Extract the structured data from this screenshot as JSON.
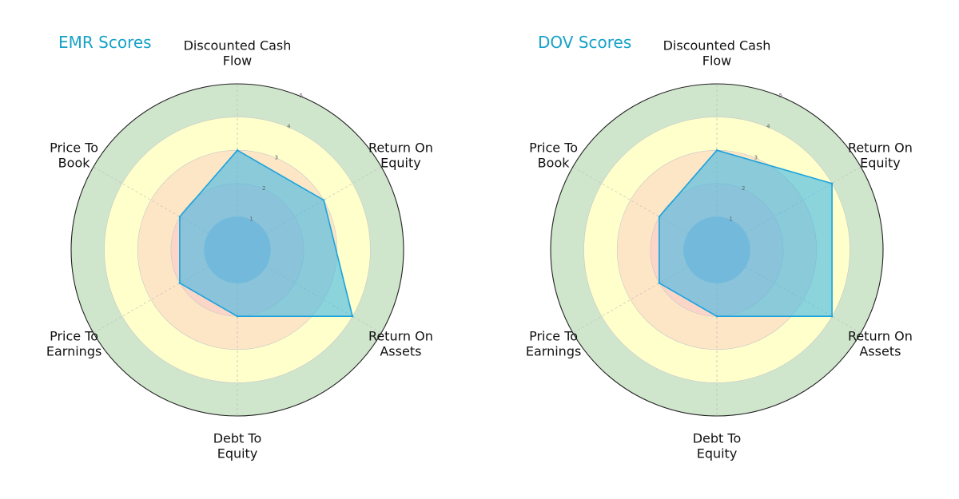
{
  "chart_data": [
    {
      "type": "radar",
      "title": "EMR Scores",
      "categories": [
        "Discounted Cash Flow",
        "Return On Equity",
        "Return On Assets",
        "Debt To Equity",
        "Price To Earnings",
        "Price To Book"
      ],
      "values": [
        3,
        3,
        4,
        2,
        2,
        2
      ],
      "rlim": [
        0,
        5
      ],
      "rticks": [
        "1",
        "2",
        "3",
        "4",
        "5"
      ],
      "grid": true
    },
    {
      "type": "radar",
      "title": "DOV Scores",
      "categories": [
        "Discounted Cash Flow",
        "Return On Equity",
        "Return On Assets",
        "Debt To Equity",
        "Price To Earnings",
        "Price To Book"
      ],
      "values": [
        3,
        4,
        4,
        2,
        2,
        2
      ],
      "rlim": [
        0,
        5
      ],
      "rticks": [
        "1",
        "2",
        "3",
        "4",
        "5"
      ],
      "grid": true
    }
  ],
  "colors": {
    "title": "#17a2c8",
    "fill": "#3fb8e6",
    "line": "#1aa3dd",
    "band_inner": "#4a90d9",
    "band_red": "#f8c9c9",
    "band_orange": "#fde2c4",
    "band_yellow": "#ffffcc",
    "band_green": "#cfe6cc"
  }
}
